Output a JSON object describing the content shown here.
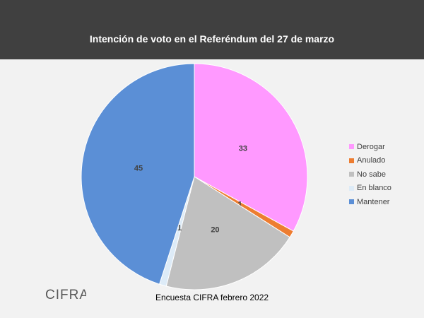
{
  "chart_data": {
    "type": "pie",
    "title": "Intención de voto en el Referéndum del 27 de marzo",
    "slices": [
      {
        "label": "Derogar",
        "value": 33,
        "color": "#ff99ff"
      },
      {
        "label": "Anulado",
        "value": 1,
        "color": "#ed7d31"
      },
      {
        "label": "No sabe",
        "value": 20,
        "color": "#c0c0c0"
      },
      {
        "label": "En blanco",
        "value": 1,
        "color": "#ddebf7"
      },
      {
        "label": "Mantener",
        "value": 45,
        "color": "#5b8fd6"
      }
    ],
    "legend_position": "right",
    "data_labels": true
  },
  "source": "Encuesta CIFRA febrero  2022",
  "logo": {
    "text": "CIFRA",
    "color": "#595959"
  },
  "colors": {
    "header": "#404040",
    "background": "#f2f2f2"
  }
}
